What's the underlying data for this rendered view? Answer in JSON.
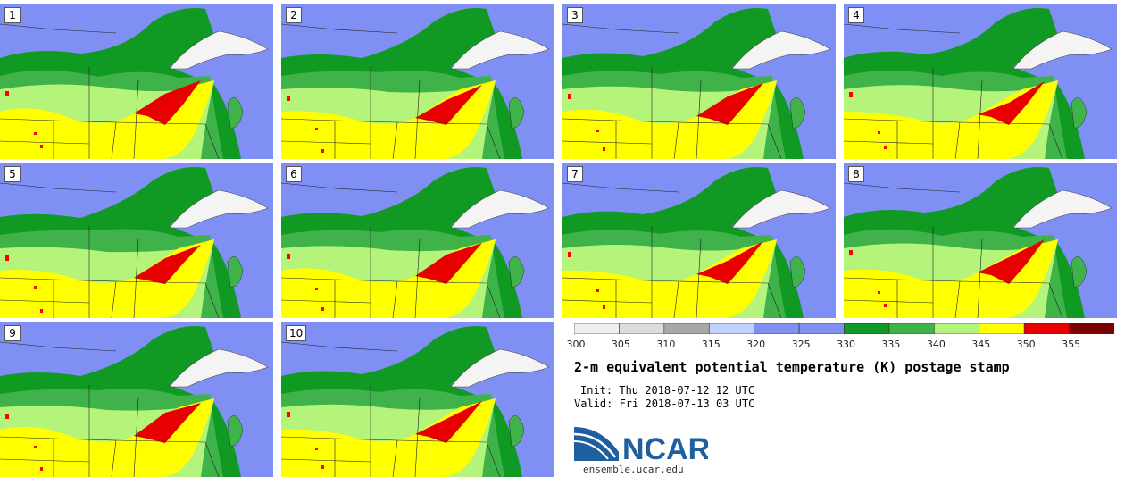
{
  "panels": [
    {
      "label": "1",
      "variant": 0
    },
    {
      "label": "2",
      "variant": 1
    },
    {
      "label": "3",
      "variant": 2
    },
    {
      "label": "4",
      "variant": 3
    },
    {
      "label": "5",
      "variant": 4
    },
    {
      "label": "6",
      "variant": 5
    },
    {
      "label": "7",
      "variant": 6
    },
    {
      "label": "8",
      "variant": 7
    },
    {
      "label": "9",
      "variant": 8
    },
    {
      "label": "10",
      "variant": 9
    }
  ],
  "colorbar": {
    "min": 300,
    "max": 360,
    "ticks": [
      "300",
      "305",
      "310",
      "315",
      "320",
      "325",
      "330",
      "335",
      "340",
      "345",
      "350",
      "355"
    ],
    "colors": [
      "#eeeeee",
      "#dcdcdc",
      "#a8a8a8",
      "#bfd1ff",
      "#7f8ff4",
      "#7f8ff4",
      "#119a23",
      "#3fb34a",
      "#b5f47a",
      "#ffff00",
      "#e80000",
      "#7a0000"
    ]
  },
  "title": "2-m equivalent potential temperature (K) postage stamp",
  "init": "Init: Thu 2018-07-12 12 UTC",
  "valid": "Valid: Fri 2018-07-13 03 UTC",
  "logo": {
    "name": "NCAR",
    "url": "ensemble.ucar.edu"
  }
}
